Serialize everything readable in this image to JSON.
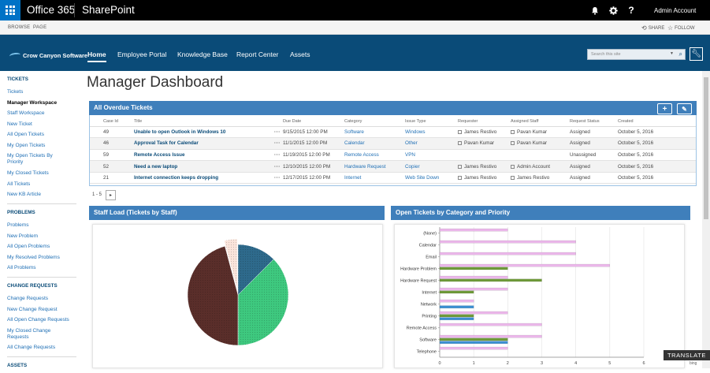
{
  "suite": {
    "brand": "Office 365",
    "app": "SharePoint",
    "account": "Admin Account",
    "icons": [
      "bell-icon",
      "gear-icon",
      "help-icon"
    ]
  },
  "ribbon": {
    "tabs": [
      "BROWSE",
      "PAGE"
    ],
    "share": "SHARE",
    "follow": "FOLLOW"
  },
  "site": {
    "logo": "Crow Canyon Software",
    "nav": [
      "Home",
      "Employee Portal",
      "Knowledge Base",
      "Report Center",
      "Assets"
    ],
    "search_placeholder": "Search this site"
  },
  "leftnav": {
    "tickets_head": "TICKETS",
    "tickets": [
      "Tickets",
      "Manager Workspace",
      "Staff Workspace",
      "New Ticket",
      "All Open Tickets",
      "My Open Tickets",
      "My Open Tickets By Priority",
      "My Closed Tickets",
      "All Tickets",
      "New KB Article"
    ],
    "problems_head": "PROBLEMS",
    "problems": [
      "Problems",
      "New Problem",
      "All Open Problems",
      "My Resolved Problems",
      "All Problems"
    ],
    "change_head": "CHANGE REQUESTS",
    "change": [
      "Change Requests",
      "New Change Request",
      "All Open Change Requests",
      "My Closed Change Requests",
      "All Change Requests"
    ],
    "assets_head": "ASSETS"
  },
  "page": {
    "title": "Manager Dashboard"
  },
  "overdue": {
    "title": "All Overdue Tickets",
    "columns": [
      "Case Id",
      "Title",
      "Due Date",
      "Category",
      "Issue Type",
      "Requester",
      "Assigned Staff",
      "Request Status",
      "Created"
    ],
    "rows": [
      {
        "id": "49",
        "title": "Unable to open Outlook in Windows 10",
        "due": "9/15/2015 12:00 PM",
        "category": "Software",
        "issue": "Windows",
        "requester": "James Restivo",
        "staff": "Pavan Kumar",
        "status": "Assigned",
        "created": "October 5, 2016"
      },
      {
        "id": "46",
        "title": "Approval Task for Calendar",
        "due": "11/1/2015 12:00 PM",
        "category": "Calendar",
        "issue": "Other",
        "requester": "Pavan Kumar",
        "staff": "Pavan Kumar",
        "status": "Assigned",
        "created": "October 5, 2016"
      },
      {
        "id": "59",
        "title": "Remote Access Issue",
        "due": "11/19/2015 12:00 PM",
        "category": "Remote Access",
        "issue": "VPN",
        "requester": "",
        "staff": "",
        "status": "Unassigned",
        "created": "October 5, 2016"
      },
      {
        "id": "52",
        "title": "Need a new laptop",
        "due": "12/10/2015 12:00 PM",
        "category": "Hardware Request",
        "issue": "Copier",
        "requester": "James Restivo",
        "staff": "Admin Account",
        "status": "Assigned",
        "created": "October 5, 2016"
      },
      {
        "id": "21",
        "title": "Internet connection keeps dropping",
        "due": "12/17/2015 12:00 PM",
        "category": "Internet",
        "issue": "Web Site Down",
        "requester": "James Restivo",
        "staff": "James Restivo",
        "status": "Assigned",
        "created": "October 5, 2016"
      }
    ],
    "pager": "1 - 5",
    "next": "▸",
    "add": "+",
    "edit": "✎"
  },
  "staffload": {
    "title": "Staff Load (Tickets by Staff)"
  },
  "bycat": {
    "title": "Open Tickets by Category and Priority"
  },
  "translate": "TRANSLATE",
  "bing": "bing",
  "chart_data": [
    {
      "type": "pie",
      "title": "Staff Load (Tickets by Staff)",
      "slices": [
        {
          "value": 3,
          "color": "#2e6a8c"
        },
        {
          "value": 9,
          "color": "#3ec97f"
        },
        {
          "value": 11,
          "color": "#5a2e2a"
        },
        {
          "value": 1,
          "color": "#fbe5dc"
        }
      ]
    },
    {
      "type": "bar",
      "orientation": "horizontal",
      "title": "Open Tickets by Category and Priority",
      "categories": [
        "(None)",
        "Calendar",
        "Email",
        "Hardware Problem",
        "Hardware Request",
        "Internet",
        "Network",
        "Printing",
        "Remote Access",
        "Software",
        "Telephone"
      ],
      "xlim": [
        0,
        6
      ],
      "xticks": [
        0,
        1,
        2,
        3,
        4,
        5,
        6
      ],
      "series": [
        {
          "color": "#ebb7ea",
          "values": [
            2,
            4,
            4,
            5,
            2,
            2,
            1,
            2,
            3,
            3,
            2
          ]
        },
        {
          "color": "#6f9a3a",
          "values": [
            0,
            0,
            0,
            2,
            3,
            1,
            0,
            1,
            0,
            2,
            0
          ]
        },
        {
          "color": "#3a8ed1",
          "values": [
            0,
            0,
            0,
            0,
            0,
            0,
            1,
            1,
            0,
            2,
            0
          ]
        }
      ]
    }
  ]
}
